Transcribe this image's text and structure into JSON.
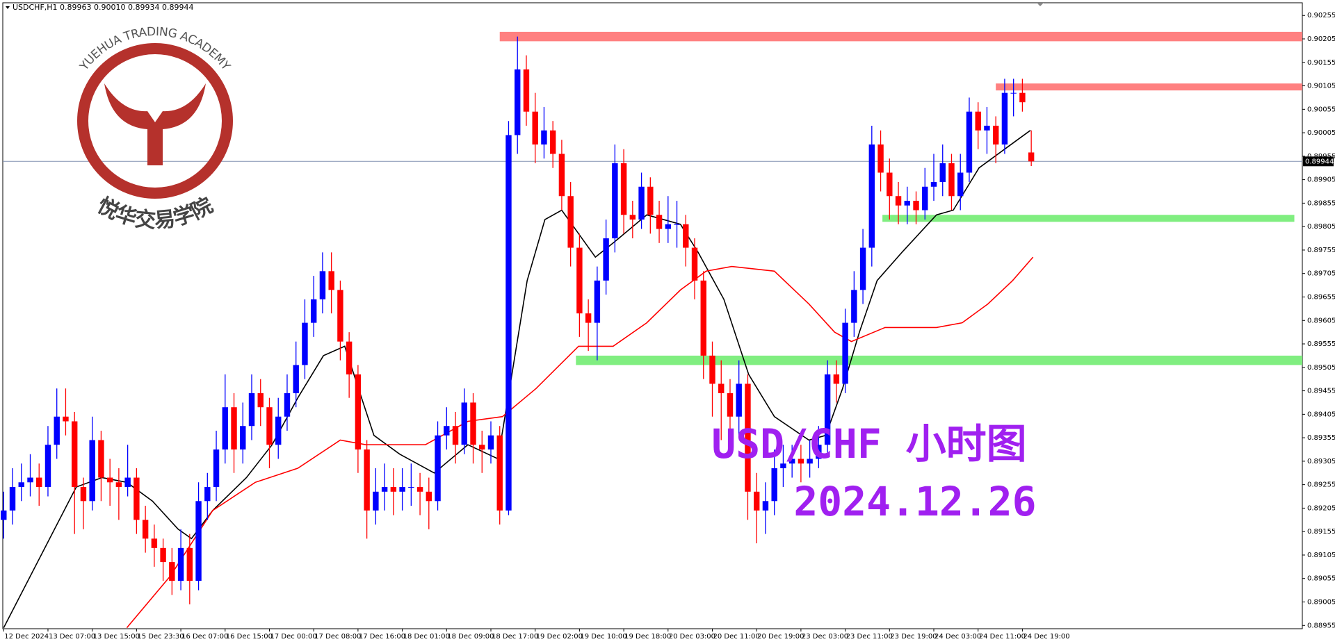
{
  "chart_data": {
    "type": "candlestick",
    "title": "USDCHF,H1  0.89963 0.90010 0.89934 0.89944",
    "up_color": "#0000ff",
    "down_color": "#ff0000",
    "ohlc": [
      [
        0.8918,
        0.8924,
        0.8914,
        0.892
      ],
      [
        0.892,
        0.8929,
        0.8917,
        0.8925
      ],
      [
        0.8925,
        0.893,
        0.8922,
        0.8926
      ],
      [
        0.8926,
        0.8932,
        0.8923,
        0.8927
      ],
      [
        0.8927,
        0.893,
        0.8921,
        0.8925
      ],
      [
        0.8925,
        0.8938,
        0.8923,
        0.8934
      ],
      [
        0.8934,
        0.8946,
        0.8931,
        0.894
      ],
      [
        0.894,
        0.8946,
        0.8936,
        0.8939
      ],
      [
        0.8939,
        0.8941,
        0.8915,
        0.8925
      ],
      [
        0.8925,
        0.8927,
        0.8916,
        0.8922
      ],
      [
        0.8922,
        0.894,
        0.892,
        0.8935
      ],
      [
        0.8935,
        0.8937,
        0.8922,
        0.8927
      ],
      [
        0.8927,
        0.8931,
        0.8921,
        0.8926
      ],
      [
        0.8926,
        0.8929,
        0.8918,
        0.8925
      ],
      [
        0.8925,
        0.8934,
        0.8923,
        0.8927
      ],
      [
        0.8927,
        0.8929,
        0.8915,
        0.8918
      ],
      [
        0.8918,
        0.8921,
        0.8911,
        0.8914
      ],
      [
        0.8914,
        0.8917,
        0.8908,
        0.8912
      ],
      [
        0.8912,
        0.8914,
        0.8905,
        0.8909
      ],
      [
        0.8909,
        0.8912,
        0.8902,
        0.8905
      ],
      [
        0.8905,
        0.8916,
        0.8903,
        0.8912
      ],
      [
        0.8912,
        0.8915,
        0.89,
        0.8905
      ],
      [
        0.8905,
        0.8926,
        0.8903,
        0.8922
      ],
      [
        0.8922,
        0.8928,
        0.8918,
        0.8925
      ],
      [
        0.8925,
        0.8937,
        0.8922,
        0.8933
      ],
      [
        0.8933,
        0.8949,
        0.893,
        0.8942
      ],
      [
        0.8942,
        0.8945,
        0.8928,
        0.8933
      ],
      [
        0.8933,
        0.8943,
        0.893,
        0.8938
      ],
      [
        0.8938,
        0.8949,
        0.8935,
        0.8945
      ],
      [
        0.8945,
        0.8948,
        0.8938,
        0.8942
      ],
      [
        0.8942,
        0.8944,
        0.8929,
        0.8934
      ],
      [
        0.8934,
        0.8944,
        0.8931,
        0.894
      ],
      [
        0.894,
        0.8949,
        0.8937,
        0.8945
      ],
      [
        0.8945,
        0.8956,
        0.8942,
        0.8951
      ],
      [
        0.8951,
        0.8965,
        0.8948,
        0.896
      ],
      [
        0.896,
        0.897,
        0.8957,
        0.8965
      ],
      [
        0.8965,
        0.8975,
        0.8962,
        0.8971
      ],
      [
        0.8971,
        0.8975,
        0.8962,
        0.8967
      ],
      [
        0.8967,
        0.8969,
        0.8952,
        0.8956
      ],
      [
        0.8956,
        0.8958,
        0.8944,
        0.8949
      ],
      [
        0.8949,
        0.8951,
        0.8928,
        0.8933
      ],
      [
        0.8933,
        0.8935,
        0.8914,
        0.892
      ],
      [
        0.892,
        0.8929,
        0.8917,
        0.8924
      ],
      [
        0.8924,
        0.893,
        0.892,
        0.8925
      ],
      [
        0.8925,
        0.8929,
        0.8919,
        0.8924
      ],
      [
        0.8924,
        0.8929,
        0.892,
        0.8925
      ],
      [
        0.8925,
        0.893,
        0.8921,
        0.8925
      ],
      [
        0.8925,
        0.8928,
        0.8919,
        0.8924
      ],
      [
        0.8924,
        0.8927,
        0.8916,
        0.8922
      ],
      [
        0.8922,
        0.8939,
        0.892,
        0.8936
      ],
      [
        0.8936,
        0.8942,
        0.8933,
        0.8938
      ],
      [
        0.8938,
        0.8941,
        0.893,
        0.8934
      ],
      [
        0.8934,
        0.8946,
        0.8932,
        0.8943
      ],
      [
        0.8943,
        0.8945,
        0.893,
        0.8934
      ],
      [
        0.8934,
        0.8937,
        0.8928,
        0.8933
      ],
      [
        0.8933,
        0.8939,
        0.893,
        0.8936
      ],
      [
        0.8936,
        0.8938,
        0.8917,
        0.892
      ],
      [
        0.892,
        0.9003,
        0.8919,
        0.9
      ],
      [
        0.9,
        0.9021,
        0.8996,
        0.9014
      ],
      [
        0.9014,
        0.9017,
        0.9002,
        0.9005
      ],
      [
        0.9005,
        0.9009,
        0.8994,
        0.8998
      ],
      [
        0.8998,
        0.9006,
        0.8995,
        0.9001
      ],
      [
        0.9001,
        0.9003,
        0.8993,
        0.8996
      ],
      [
        0.8996,
        0.8999,
        0.8984,
        0.8987
      ],
      [
        0.8987,
        0.899,
        0.8972,
        0.8976
      ],
      [
        0.8976,
        0.8979,
        0.8957,
        0.8962
      ],
      [
        0.8962,
        0.8965,
        0.8954,
        0.896
      ],
      [
        0.896,
        0.8972,
        0.8952,
        0.8969
      ],
      [
        0.8969,
        0.8982,
        0.8966,
        0.8978
      ],
      [
        0.8978,
        0.8998,
        0.8975,
        0.8994
      ],
      [
        0.8994,
        0.8997,
        0.8979,
        0.8983
      ],
      [
        0.8983,
        0.8986,
        0.8978,
        0.8982
      ],
      [
        0.8982,
        0.8992,
        0.898,
        0.8989
      ],
      [
        0.8989,
        0.8991,
        0.8979,
        0.8983
      ],
      [
        0.8983,
        0.8986,
        0.8977,
        0.898
      ],
      [
        0.898,
        0.8987,
        0.8977,
        0.8981
      ],
      [
        0.8981,
        0.8986,
        0.8976,
        0.8981
      ],
      [
        0.8981,
        0.8983,
        0.8972,
        0.8976
      ],
      [
        0.8976,
        0.8978,
        0.8965,
        0.8969
      ],
      [
        0.8969,
        0.8971,
        0.8948,
        0.8953
      ],
      [
        0.8953,
        0.8956,
        0.894,
        0.8947
      ],
      [
        0.8947,
        0.8952,
        0.8935,
        0.8945
      ],
      [
        0.8945,
        0.8948,
        0.8932,
        0.894
      ],
      [
        0.894,
        0.8952,
        0.8936,
        0.8947
      ],
      [
        0.8947,
        0.8949,
        0.8918,
        0.8924
      ],
      [
        0.8924,
        0.8928,
        0.8913,
        0.892
      ],
      [
        0.892,
        0.8926,
        0.8915,
        0.8922
      ],
      [
        0.8922,
        0.8933,
        0.8919,
        0.8929
      ],
      [
        0.8929,
        0.8934,
        0.8925,
        0.893
      ],
      [
        0.893,
        0.8934,
        0.8927,
        0.8931
      ],
      [
        0.8931,
        0.8934,
        0.8926,
        0.893
      ],
      [
        0.893,
        0.8935,
        0.8927,
        0.8931
      ],
      [
        0.8931,
        0.8938,
        0.8929,
        0.8934
      ],
      [
        0.8934,
        0.8952,
        0.8932,
        0.8949
      ],
      [
        0.8949,
        0.8952,
        0.8943,
        0.8947
      ],
      [
        0.8947,
        0.8963,
        0.8945,
        0.896
      ],
      [
        0.896,
        0.8971,
        0.8957,
        0.8967
      ],
      [
        0.8967,
        0.898,
        0.8964,
        0.8976
      ],
      [
        0.8976,
        0.9002,
        0.8972,
        0.8998
      ],
      [
        0.8998,
        0.9001,
        0.8988,
        0.8992
      ],
      [
        0.8992,
        0.8995,
        0.8982,
        0.8987
      ],
      [
        0.8987,
        0.899,
        0.8981,
        0.8985
      ],
      [
        0.8985,
        0.8989,
        0.8981,
        0.8986
      ],
      [
        0.8986,
        0.8988,
        0.8981,
        0.8984
      ],
      [
        0.8984,
        0.8993,
        0.8982,
        0.8989
      ],
      [
        0.8989,
        0.8996,
        0.8986,
        0.899
      ],
      [
        0.899,
        0.8998,
        0.8987,
        0.8994
      ],
      [
        0.8994,
        0.8996,
        0.8984,
        0.8987
      ],
      [
        0.8987,
        0.8996,
        0.8984,
        0.8992
      ],
      [
        0.8992,
        0.9008,
        0.899,
        0.9005
      ],
      [
        0.9005,
        0.9007,
        0.8997,
        0.9001
      ],
      [
        0.9001,
        0.9006,
        0.8996,
        0.9002
      ],
      [
        0.9002,
        0.9004,
        0.8994,
        0.8998
      ],
      [
        0.8998,
        0.9012,
        0.8996,
        0.9009
      ],
      [
        0.9009,
        0.9012,
        0.9004,
        0.9009
      ],
      [
        0.9009,
        0.9012,
        0.9005,
        0.9007
      ],
      [
        0.89963,
        0.9001,
        0.89934,
        0.89944
      ]
    ],
    "xlim": [
      -0.1,
      146.6
    ],
    "xticks": [
      {
        "value": 0,
        "label": "12 Dec 2024"
      },
      {
        "value": 5,
        "label": "13 Dec 07:00"
      },
      {
        "value": 10,
        "label": "13 Dec 15:00"
      },
      {
        "value": 15,
        "label": "15 Dec 23:30"
      },
      {
        "value": 20,
        "label": "16 Dec 07:00"
      },
      {
        "value": 25,
        "label": "16 Dec 15:00"
      },
      {
        "value": 30,
        "label": "17 Dec 00:00"
      },
      {
        "value": 35,
        "label": "17 Dec 08:00"
      },
      {
        "value": 40,
        "label": "17 Dec 16:00"
      },
      {
        "value": 45,
        "label": "18 Dec 01:00"
      },
      {
        "value": 50,
        "label": "18 Dec 09:00"
      },
      {
        "value": 55,
        "label": "18 Dec 17:00"
      },
      {
        "value": 60,
        "label": "19 Dec 02:00"
      },
      {
        "value": 65,
        "label": "19 Dec 10:00"
      },
      {
        "value": 70,
        "label": "19 Dec 18:00"
      },
      {
        "value": 75,
        "label": "20 Dec 03:00"
      },
      {
        "value": 80,
        "label": "20 Dec 11:00"
      },
      {
        "value": 85,
        "label": "20 Dec 19:00"
      },
      {
        "value": 90,
        "label": "23 Dec 03:00"
      },
      {
        "value": 95,
        "label": "23 Dec 11:00"
      },
      {
        "value": 100,
        "label": "23 Dec 19:00"
      },
      {
        "value": 105,
        "label": "24 Dec 03:00"
      },
      {
        "value": 110,
        "label": "24 Dec 11:00"
      },
      {
        "value": 115,
        "label": "24 Dec 19:00"
      }
    ],
    "ylim": [
      0.88948,
      0.90282
    ],
    "yticks": [
      0.90255,
      0.90205,
      0.90155,
      0.90105,
      0.90055,
      0.90005,
      0.89955,
      0.89905,
      0.89855,
      0.89805,
      0.89755,
      0.89705,
      0.89655,
      0.89605,
      0.89555,
      0.89505,
      0.89455,
      0.89405,
      0.89355,
      0.89305,
      0.89255,
      0.89205,
      0.89155,
      0.89105,
      0.89055,
      0.89005,
      0.88955
    ],
    "lines": [
      {
        "color": "#000000",
        "x": [
          0,
          8.2,
          11.1,
          13.9,
          16.8,
          19.7,
          21.2,
          23.6,
          27.4,
          30.3,
          33.2,
          36.1,
          38.5,
          40.4,
          41.8,
          44.7,
          48.6,
          52.4,
          55.8,
          57.2,
          59.1,
          61.1,
          63,
          64.9,
          66.8,
          68.8,
          72.6,
          76.4,
          78.4,
          81.3,
          84.1,
          87,
          90.9,
          92.8,
          94.7,
          96.6,
          98.6,
          101.4,
          105.3,
          107.2,
          110.1,
          113,
          115.9
        ],
        "values": [
          0.8895,
          0.8925,
          0.8927,
          0.8926,
          0.8922,
          0.8916,
          0.8914,
          0.892,
          0.8927,
          0.8934,
          0.8944,
          0.8953,
          0.8955,
          0.8944,
          0.8936,
          0.8932,
          0.8928,
          0.8934,
          0.8931,
          0.8947,
          0.8969,
          0.8982,
          0.8984,
          0.8979,
          0.8974,
          0.8977,
          0.8983,
          0.8981,
          0.8975,
          0.8965,
          0.8949,
          0.894,
          0.8935,
          0.8936,
          0.8946,
          0.8958,
          0.8969,
          0.8975,
          0.8983,
          0.8984,
          0.8993,
          0.8997,
          0.9001
        ]
      },
      {
        "color": "#ff0000",
        "x": [
          13.9,
          18.8,
          23.6,
          28.4,
          33.2,
          38,
          40.9,
          47.6,
          52.4,
          56.3,
          60.1,
          64.9,
          68.8,
          72.6,
          76.4,
          79.3,
          82.2,
          87,
          90.9,
          93.8,
          95.7,
          99.5,
          105.3,
          108.2,
          111.1,
          113.9,
          116.2
        ],
        "values": [
          0.8895,
          0.8906,
          0.892,
          0.8926,
          0.8929,
          0.8935,
          0.8934,
          0.8934,
          0.8939,
          0.894,
          0.8946,
          0.8955,
          0.8955,
          0.896,
          0.8967,
          0.8971,
          0.8972,
          0.8971,
          0.8964,
          0.8958,
          0.8956,
          0.8959,
          0.8959,
          0.896,
          0.8964,
          0.8969,
          0.8974
        ]
      }
    ],
    "zones": [
      {
        "color": "#ff8080",
        "x": [
          56,
          146.6
        ],
        "range": [
          0.9022,
          0.902
        ]
      },
      {
        "color": "#ff8080",
        "x": [
          112,
          146.6
        ],
        "range": [
          0.9011,
          0.901
        ]
      },
      {
        "color": "#80ee80",
        "x": [
          99.2,
          145.7
        ],
        "range": [
          0.8983,
          0.8982
        ]
      },
      {
        "color": "#80ee80",
        "x": [
          64.6,
          146.6
        ],
        "range": [
          0.8953,
          0.8951
        ]
      }
    ],
    "current_price": 0.89944,
    "current_price_color": "#8090b0",
    "annotations": [
      "USD/CHF 小时图",
      "2024.12.26"
    ],
    "annotation_color": "#a020f0"
  },
  "logo": {
    "arc_text": "YUEHUA TRADING ACADEMY",
    "name": "悦华交易学院"
  }
}
